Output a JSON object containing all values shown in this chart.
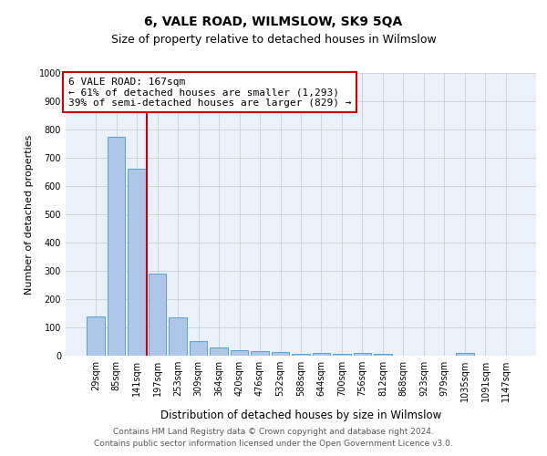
{
  "title": "6, VALE ROAD, WILMSLOW, SK9 5QA",
  "subtitle": "Size of property relative to detached houses in Wilmslow",
  "xlabel": "Distribution of detached houses by size in Wilmslow",
  "ylabel": "Number of detached properties",
  "bar_labels": [
    "29sqm",
    "85sqm",
    "141sqm",
    "197sqm",
    "253sqm",
    "309sqm",
    "364sqm",
    "420sqm",
    "476sqm",
    "532sqm",
    "588sqm",
    "644sqm",
    "700sqm",
    "756sqm",
    "812sqm",
    "868sqm",
    "923sqm",
    "979sqm",
    "1035sqm",
    "1091sqm",
    "1147sqm"
  ],
  "bar_values": [
    140,
    775,
    660,
    290,
    137,
    52,
    28,
    20,
    17,
    12,
    5,
    10,
    5,
    10,
    7,
    0,
    0,
    0,
    10,
    0,
    0
  ],
  "bar_color": "#aec6e8",
  "bar_edge_color": "#5a9fd4",
  "vline_x": 2.5,
  "vline_color": "#cc0000",
  "annotation_text": "6 VALE ROAD: 167sqm\n← 61% of detached houses are smaller (1,293)\n39% of semi-detached houses are larger (829) →",
  "annotation_box_color": "#ffffff",
  "annotation_box_edge": "#cc0000",
  "ylim": [
    0,
    1000
  ],
  "yticks": [
    0,
    100,
    200,
    300,
    400,
    500,
    600,
    700,
    800,
    900,
    1000
  ],
  "grid_color": "#cccccc",
  "background_color": "#eaf1fb",
  "footer_line1": "Contains HM Land Registry data © Crown copyright and database right 2024.",
  "footer_line2": "Contains public sector information licensed under the Open Government Licence v3.0.",
  "title_fontsize": 10,
  "subtitle_fontsize": 9,
  "annotation_fontsize": 8,
  "footer_fontsize": 6.5,
  "ylabel_fontsize": 8,
  "xlabel_fontsize": 8.5,
  "tick_fontsize": 7
}
